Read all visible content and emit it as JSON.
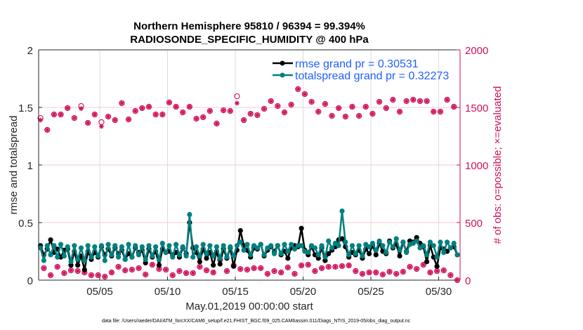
{
  "chart_data": {
    "type": "line",
    "title": [
      "Northern Hemisphere 95810 / 96394 = 99.394%",
      "RADIOSONDE_SPECIFIC_HUMIDITY @ 400 hPa"
    ],
    "xlabel": "May.01,2019 00:00:00 start",
    "ylabel": "rmse and totalspread",
    "ylabel_right": "# of obs: o=possible; ×=evaluated",
    "footer": "data file: /Users/raeder/DAI/ATM_forcXX/CAM6_setup/f.e21.FHIST_BGC.f09_025.CAM6assim.011/Diags_NTrS_2019-05/obs_diag_output.nc",
    "x_units": "days since 2019-05-01 00:00",
    "xlim": [
      -0.51,
      30.58
    ],
    "ylim": [
      0,
      2
    ],
    "ylim_right": [
      0,
      2000
    ],
    "x_start": -0.375,
    "x_step": 0.25,
    "xticks": [
      4,
      9,
      14,
      19,
      24,
      29
    ],
    "xtick_labels": [
      "05/05",
      "05/10",
      "05/15",
      "05/20",
      "05/25",
      "05/30"
    ],
    "yticks": [
      0,
      0.5,
      1,
      1.5,
      2
    ],
    "ytick_labels": [
      "0",
      "0.5",
      "1",
      "1.5",
      "2"
    ],
    "yticks_right": [
      0,
      500,
      1000,
      1500,
      2000
    ],
    "ytick_labels_right": [
      "0",
      "500",
      "1000",
      "1500",
      "2000"
    ],
    "grid": true,
    "legend_position": "top-right",
    "colors": {
      "rmse": "#000000",
      "totalspread": "#008080",
      "obs": "#d0105a",
      "legend_text": "#1f5fff"
    },
    "series": [
      {
        "name": "rmse",
        "legend": "rmse grand pr = 0.30531",
        "axis": "left",
        "values": [
          0.3,
          0.22,
          0.27,
          0.35,
          0.24,
          0.27,
          0.2,
          0.26,
          0.27,
          0.13,
          0.25,
          0.13,
          0.21,
          0.09,
          0.25,
          0.18,
          0.24,
          0.2,
          0.29,
          0.22,
          0.27,
          0.21,
          0.28,
          0.23,
          0.26,
          0.18,
          0.23,
          0.2,
          0.28,
          0.24,
          0.26,
          0.15,
          0.27,
          0.2,
          0.25,
          0.13,
          0.27,
          0.24,
          0.25,
          0.22,
          0.24,
          0.2,
          0.28,
          0.23,
          0.5,
          0.28,
          0.24,
          0.16,
          0.27,
          0.19,
          0.24,
          0.13,
          0.25,
          0.14,
          0.27,
          0.19,
          0.28,
          0.12,
          0.26,
          0.43,
          0.3,
          0.26,
          0.2,
          0.28,
          0.27,
          0.31,
          0.21,
          0.26,
          0.29,
          0.25,
          0.3,
          0.22,
          0.25,
          0.19,
          0.28,
          0.3,
          0.29,
          0.45,
          0.26,
          0.22,
          0.29,
          0.22,
          0.19,
          0.28,
          0.17,
          0.23,
          0.26,
          0.29,
          0.35,
          0.36,
          0.29,
          0.2,
          0.24,
          0.22,
          0.26,
          0.19,
          0.27,
          0.23,
          0.3,
          0.22,
          0.32,
          0.25,
          0.23,
          0.34,
          0.28,
          0.31,
          0.21,
          0.33,
          0.25,
          0.34,
          0.33,
          0.37,
          0.32,
          0.29,
          0.16,
          0.3,
          0.2,
          0.12,
          0.28,
          0.27,
          0.25,
          0.28,
          0.29,
          0.22
        ]
      },
      {
        "name": "totalspread",
        "legend": "totalspread grand pr = 0.32273",
        "axis": "left",
        "values": [
          0.28,
          0.17,
          0.3,
          0.22,
          0.3,
          0.2,
          0.31,
          0.21,
          0.29,
          0.16,
          0.3,
          0.18,
          0.28,
          0.17,
          0.3,
          0.2,
          0.29,
          0.21,
          0.3,
          0.17,
          0.31,
          0.22,
          0.3,
          0.2,
          0.29,
          0.18,
          0.31,
          0.2,
          0.3,
          0.22,
          0.29,
          0.18,
          0.3,
          0.21,
          0.29,
          0.18,
          0.32,
          0.24,
          0.3,
          0.2,
          0.31,
          0.22,
          0.29,
          0.21,
          0.57,
          0.2,
          0.29,
          0.21,
          0.31,
          0.23,
          0.3,
          0.21,
          0.29,
          0.19,
          0.3,
          0.2,
          0.29,
          0.21,
          0.3,
          0.33,
          0.26,
          0.31,
          0.22,
          0.3,
          0.28,
          0.31,
          0.22,
          0.28,
          0.3,
          0.23,
          0.3,
          0.23,
          0.31,
          0.25,
          0.31,
          0.27,
          0.3,
          0.3,
          0.25,
          0.24,
          0.3,
          0.28,
          0.22,
          0.3,
          0.2,
          0.34,
          0.28,
          0.32,
          0.3,
          0.6,
          0.33,
          0.22,
          0.3,
          0.23,
          0.3,
          0.21,
          0.31,
          0.29,
          0.32,
          0.26,
          0.34,
          0.3,
          0.24,
          0.33,
          0.29,
          0.36,
          0.26,
          0.33,
          0.24,
          0.31,
          0.32,
          0.34,
          0.28,
          0.3,
          0.22,
          0.33,
          0.3,
          0.2,
          0.33,
          0.24,
          0.33,
          0.28,
          0.32,
          0.22
        ]
      },
      {
        "name": "obs_possible",
        "marker": "o",
        "axis": "right",
        "values": [
          1408,
          104,
          1305,
          43,
          1439,
          116,
          1439,
          61,
          1494,
          85,
          1408,
          79,
          1512,
          67,
          1366,
          43,
          1439,
          43,
          1372,
          30,
          1420,
          67,
          1390,
          116,
          1537,
          85,
          1396,
          91,
          1469,
          104,
          1494,
          49,
          1506,
          134,
          1439,
          97,
          1439,
          91,
          1543,
          43,
          1506,
          79,
          1457,
          61,
          1506,
          61,
          1402,
          116,
          1415,
          85,
          1469,
          67,
          1360,
          177,
          1475,
          79,
          1469,
          128,
          1597,
          97,
          1390,
          91,
          1445,
          104,
          1433,
          104,
          1488,
          55,
          1555,
          79,
          1512,
          67,
          1457,
          110,
          1524,
          55,
          1659,
          128,
          1616,
          134,
          1549,
          79,
          1463,
          104,
          1530,
          116,
          1427,
          116,
          1494,
          122,
          1420,
          128,
          1506,
          79,
          1427,
          55,
          1506,
          67,
          1445,
          67,
          1549,
          49,
          1494,
          73,
          1567,
          55,
          1463,
          73,
          1555,
          116,
          1567,
          97,
          1555,
          134,
          1555,
          67,
          1463,
          79,
          1463,
          85,
          1567,
          43,
          1506,
          0
        ]
      },
      {
        "name": "obs_evaluated",
        "marker": "*",
        "axis": "right",
        "values": [
          1390,
          104,
          1305,
          43,
          1439,
          116,
          1439,
          61,
          1494,
          85,
          1408,
          79,
          1490,
          67,
          1366,
          43,
          1439,
          43,
          1335,
          30,
          1420,
          67,
          1390,
          116,
          1537,
          85,
          1396,
          91,
          1469,
          104,
          1494,
          49,
          1506,
          134,
          1439,
          97,
          1439,
          91,
          1543,
          43,
          1506,
          79,
          1457,
          61,
          1506,
          61,
          1402,
          116,
          1415,
          85,
          1469,
          67,
          1360,
          177,
          1475,
          79,
          1469,
          128,
          1537,
          97,
          1390,
          91,
          1445,
          104,
          1433,
          104,
          1488,
          55,
          1555,
          79,
          1512,
          67,
          1457,
          110,
          1524,
          55,
          1659,
          128,
          1616,
          134,
          1549,
          79,
          1463,
          104,
          1530,
          116,
          1427,
          116,
          1494,
          122,
          1420,
          128,
          1506,
          79,
          1427,
          55,
          1506,
          67,
          1445,
          67,
          1549,
          49,
          1494,
          73,
          1567,
          55,
          1463,
          73,
          1555,
          116,
          1567,
          97,
          1555,
          134,
          1555,
          67,
          1463,
          79,
          1463,
          85,
          1567,
          43,
          1506,
          0
        ]
      }
    ]
  }
}
